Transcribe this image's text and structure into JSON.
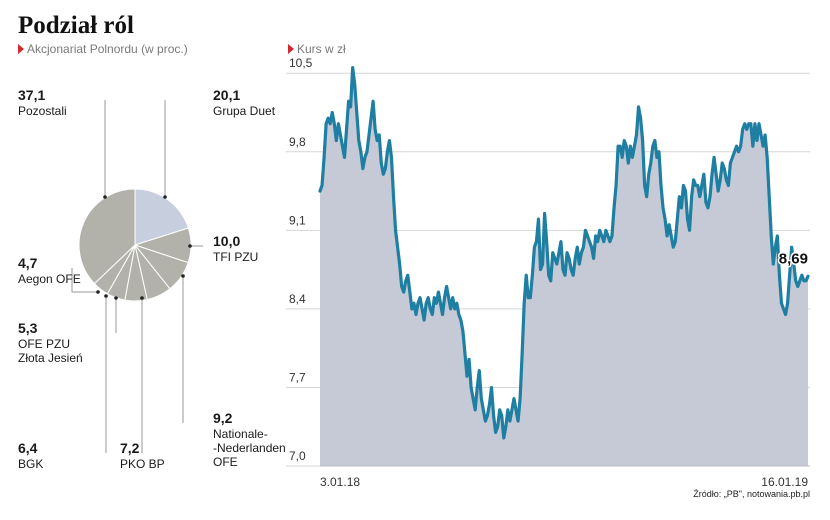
{
  "header": {
    "title": "Podział ról",
    "pie_subtitle": "Akcjonariat Polnordu (w proc.)",
    "line_subtitle": "Kurs w zł"
  },
  "source": "Źródło: „PB\", notowania.pb.pl",
  "colors": {
    "accent": "#d4282f",
    "line": "#1e7fa3",
    "area": "#c5cad6",
    "pie_light": "#c7cfdf",
    "pie_main": "#b2b2ab"
  },
  "chart_data": [
    {
      "type": "pie",
      "title": "Akcjonariat Polnordu (w proc.)",
      "slices": [
        {
          "value": "20,1",
          "pct": 20.1,
          "name_lines": [
            "Grupa Duet"
          ]
        },
        {
          "value": "10,0",
          "pct": 10.0,
          "name_lines": [
            "TFI PZU"
          ]
        },
        {
          "value": "9,2",
          "pct": 9.2,
          "name_lines": [
            "Nationale-",
            "-Nederlanden",
            "OFE"
          ]
        },
        {
          "value": "7,2",
          "pct": 7.2,
          "name_lines": [
            "PKO BP"
          ]
        },
        {
          "value": "6,4",
          "pct": 6.4,
          "name_lines": [
            "BGK"
          ]
        },
        {
          "value": "5,3",
          "pct": 5.3,
          "name_lines": [
            "OFE PZU",
            "Złota Jesień"
          ]
        },
        {
          "value": "4,7",
          "pct": 4.7,
          "name_lines": [
            "Aegon OFE"
          ]
        },
        {
          "value": "37,1",
          "pct": 37.1,
          "name_lines": [
            "Pozostali"
          ]
        }
      ]
    },
    {
      "type": "area",
      "title": "Kurs w zł",
      "ylim": [
        7.0,
        10.6
      ],
      "y_ticks": [
        "10,5",
        "9,8",
        "9,1",
        "8,4",
        "7,7",
        "7,0"
      ],
      "x_ticks": [
        "3.01.18",
        "16.01.19"
      ],
      "last_value_label": "8,69",
      "values": [
        9.45,
        9.5,
        9.75,
        10.05,
        10.1,
        10.05,
        10.15,
        10.05,
        9.9,
        10.05,
        9.95,
        9.85,
        9.75,
        10.0,
        10.25,
        10.2,
        10.55,
        10.4,
        10.15,
        9.9,
        9.8,
        9.65,
        9.75,
        9.8,
        9.95,
        10.1,
        10.25,
        10.0,
        9.9,
        9.95,
        9.7,
        9.6,
        9.65,
        9.8,
        9.9,
        9.75,
        9.4,
        9.1,
        8.95,
        8.8,
        8.6,
        8.55,
        8.65,
        8.7,
        8.55,
        8.4,
        8.45,
        8.35,
        8.45,
        8.5,
        8.4,
        8.3,
        8.45,
        8.5,
        8.4,
        8.35,
        8.5,
        8.45,
        8.55,
        8.45,
        8.35,
        8.5,
        8.6,
        8.5,
        8.4,
        8.5,
        8.4,
        8.45,
        8.35,
        8.3,
        8.2,
        8.0,
        7.8,
        7.95,
        7.7,
        7.6,
        7.5,
        7.7,
        7.85,
        7.6,
        7.5,
        7.4,
        7.45,
        7.55,
        7.7,
        7.45,
        7.3,
        7.35,
        7.5,
        7.45,
        7.25,
        7.35,
        7.5,
        7.4,
        7.5,
        7.6,
        7.5,
        7.4,
        7.6,
        8.0,
        8.45,
        8.7,
        8.5,
        8.5,
        8.7,
        8.95,
        9.0,
        9.2,
        8.75,
        8.8,
        9.25,
        9.0,
        8.7,
        8.65,
        8.9,
        8.85,
        8.8,
        8.9,
        9.0,
        8.75,
        8.7,
        8.9,
        8.85,
        8.75,
        8.7,
        8.85,
        8.95,
        8.8,
        8.9,
        8.95,
        9.1,
        9.05,
        9.0,
        8.95,
        8.85,
        9.05,
        9.0,
        9.1,
        9.05,
        9.0,
        9.1,
        9.05,
        9.0,
        9.05,
        9.3,
        9.5,
        9.85,
        9.85,
        9.75,
        9.9,
        9.85,
        9.7,
        9.85,
        9.75,
        9.85,
        9.95,
        10.2,
        10.1,
        9.9,
        9.5,
        9.4,
        9.6,
        9.7,
        9.85,
        9.9,
        9.75,
        9.8,
        9.5,
        9.3,
        9.2,
        9.05,
        9.15,
        9.05,
        8.95,
        9.0,
        9.2,
        9.4,
        9.3,
        9.5,
        9.45,
        9.2,
        9.1,
        9.4,
        9.55,
        9.5,
        9.5,
        9.4,
        9.5,
        9.6,
        9.35,
        9.3,
        9.4,
        9.6,
        9.75,
        9.6,
        9.45,
        9.55,
        9.7,
        9.65,
        9.55,
        9.5,
        9.7,
        9.75,
        9.8,
        9.85,
        9.8,
        9.85,
        10.0,
        10.05,
        10.0,
        10.05,
        10.05,
        9.85,
        10.05,
        9.9,
        10.05,
        9.95,
        9.85,
        9.95,
        9.75,
        9.4,
        9.05,
        8.8,
        8.95,
        9.05,
        8.7,
        8.45,
        8.4,
        8.35,
        8.45,
        8.7,
        8.95,
        8.8,
        8.65,
        8.6,
        8.65,
        8.7,
        8.65,
        8.65,
        8.69
      ]
    }
  ]
}
